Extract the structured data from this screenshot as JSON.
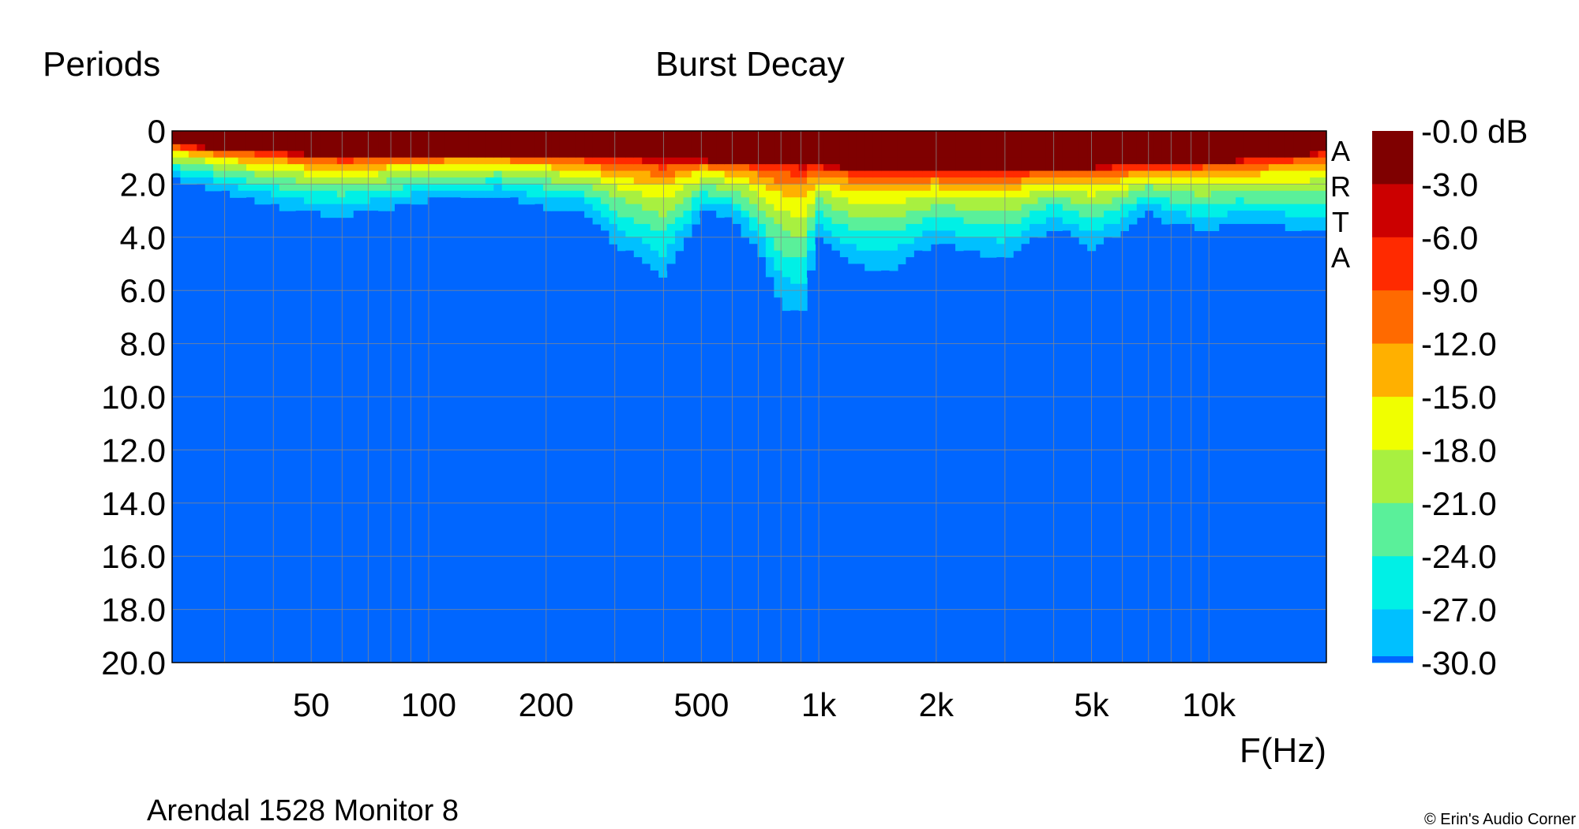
{
  "chart_data": {
    "type": "heatmap",
    "title": "Burst Decay",
    "ylabel": "Periods",
    "xlabel": "F(Hz)",
    "x_scale": "log",
    "xlim": [
      22,
      20000
    ],
    "ylim": [
      0,
      20
    ],
    "y_ticks": [
      "0",
      "2.0",
      "4.0",
      "6.0",
      "8.0",
      "10.0",
      "12.0",
      "14.0",
      "16.0",
      "18.0",
      "20.0"
    ],
    "x_ticks": [
      {
        "value": 50,
        "label": "50"
      },
      {
        "value": 100,
        "label": "100"
      },
      {
        "value": 200,
        "label": "200"
      },
      {
        "value": 500,
        "label": "500"
      },
      {
        "value": 1000,
        "label": "1k"
      },
      {
        "value": 2000,
        "label": "2k"
      },
      {
        "value": 5000,
        "label": "5k"
      },
      {
        "value": 10000,
        "label": "10k"
      }
    ],
    "grid": true,
    "brand_letters": [
      "A",
      "R",
      "T",
      "A"
    ],
    "colorscale": {
      "labels": [
        "-0.0 dB",
        "-3.0",
        "-6.0",
        "-9.0",
        "-12.0",
        "-15.0",
        "-18.0",
        "-21.0",
        "-24.0",
        "-27.0",
        "-30.0"
      ],
      "colors": [
        "#7f0000",
        "#cc0000",
        "#ff2a00",
        "#ff6a00",
        "#ffb000",
        "#f0ff00",
        "#a8f040",
        "#5af09a",
        "#00f0e6",
        "#00c0ff",
        "#0066ff"
      ],
      "floor_color": "#0066ff"
    },
    "decay_profile": {
      "freq_hz": [
        22,
        25,
        30,
        40,
        50,
        60,
        80,
        100,
        150,
        200,
        250,
        300,
        400,
        500,
        600,
        700,
        800,
        900,
        1000,
        1200,
        1500,
        2000,
        2500,
        3000,
        4000,
        5000,
        6000,
        7000,
        8000,
        10000,
        12000,
        15000,
        20000
      ],
      "periods_to_minus30db": [
        1.8,
        2.0,
        2.3,
        2.8,
        3.1,
        3.2,
        2.9,
        2.6,
        2.4,
        2.9,
        3.0,
        4.2,
        5.5,
        3.0,
        3.3,
        4.5,
        6.5,
        7.0,
        4.0,
        5.0,
        5.3,
        4.2,
        4.6,
        4.8,
        3.6,
        4.4,
        3.8,
        3.0,
        3.5,
        3.7,
        3.5,
        3.6,
        3.9
      ],
      "periods_to_minus3db": [
        0.5,
        0.6,
        0.7,
        0.8,
        0.9,
        1.0,
        0.9,
        0.9,
        0.9,
        0.9,
        1.0,
        1.0,
        1.1,
        1.1,
        1.2,
        1.2,
        1.2,
        1.3,
        1.3,
        1.4,
        1.4,
        1.5,
        1.5,
        1.5,
        1.4,
        1.4,
        1.3,
        1.3,
        1.3,
        1.2,
        1.1,
        1.0,
        0.8
      ]
    },
    "annotations": {
      "caption": "Arendal 1528 Monitor 8",
      "copyright": "© Erin's Audio Corner"
    }
  }
}
